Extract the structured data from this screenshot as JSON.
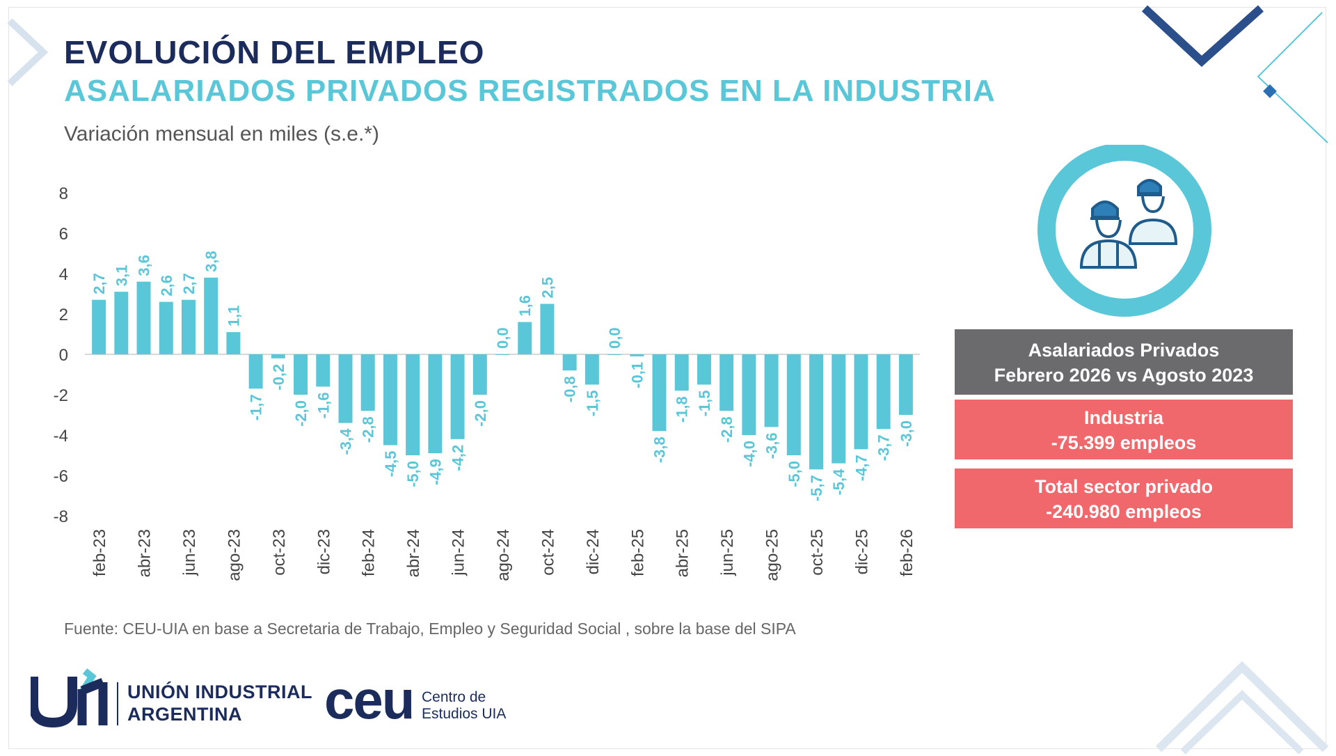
{
  "header": {
    "title": "EVOLUCIÓN DEL EMPLEO",
    "subtitle": "ASALARIADOS PRIVADOS REGISTRADOS EN LA INDUSTRIA",
    "caption": "Variación mensual en miles (s.e.*)"
  },
  "source": "Fuente: CEU-UIA en base a Secretaria de Trabajo, Empleo y Seguridad Social , sobre la base del SIPA",
  "info_panel": {
    "icon": "workers-icon",
    "heading_line1": "Asalariados Privados",
    "heading_line2": "Febrero 2026 vs Agosto 2023",
    "industria_label": "Industria",
    "industria_value": "-75.399 empleos",
    "total_label": "Total sector privado",
    "total_value": "-240.980 empleos"
  },
  "logos": {
    "uia_mark": "U/A",
    "uia_line1": "UNIÓN INDUSTRIAL",
    "uia_line2": "ARGENTINA",
    "ceu_word": "ceu",
    "ceu_line1": "Centro de",
    "ceu_line2": "Estudios UIA"
  },
  "colors": {
    "bar": "#5ac7d8",
    "title": "#1b2c5c",
    "accent_red": "#f0686b",
    "grey_box": "#6b6b6d"
  },
  "chart_data": {
    "type": "bar",
    "title": "",
    "xlabel": "",
    "ylabel": "",
    "ylim": [
      -8,
      8
    ],
    "yticks": [
      8,
      6,
      4,
      2,
      0,
      -2,
      -4,
      -6,
      -8
    ],
    "grid": false,
    "categories": [
      "feb-23",
      "mar-23",
      "abr-23",
      "may-23",
      "jun-23",
      "jul-23",
      "ago-23",
      "sep-23",
      "oct-23",
      "nov-23",
      "dic-23",
      "ene-24",
      "feb-24",
      "mar-24",
      "abr-24",
      "may-24",
      "jun-24",
      "jul-24",
      "ago-24",
      "sep-24",
      "oct-24",
      "nov-24",
      "dic-24",
      "ene-25",
      "feb-25",
      "mar-25",
      "abr-25",
      "may-25",
      "jun-25",
      "jul-25",
      "ago-25",
      "sep-25",
      "oct-25",
      "nov-25",
      "dic-25",
      "ene-26",
      "feb-26"
    ],
    "tick_labels": [
      "feb-23",
      "",
      "abr-23",
      "",
      "jun-23",
      "",
      "ago-23",
      "",
      "oct-23",
      "",
      "dic-23",
      "",
      "feb-24",
      "",
      "abr-24",
      "",
      "jun-24",
      "",
      "ago-24",
      "",
      "oct-24",
      "",
      "dic-24",
      "",
      "feb-25",
      "",
      "abr-25",
      "",
      "jun-25",
      "",
      "ago-25",
      "",
      "oct-25",
      "",
      "dic-25",
      "",
      "feb-26"
    ],
    "values": [
      2.7,
      3.1,
      3.6,
      2.6,
      2.7,
      3.8,
      1.1,
      -1.7,
      -0.2,
      -2.0,
      -1.6,
      -3.4,
      -2.8,
      -4.5,
      -5.0,
      -4.9,
      -4.2,
      -2.0,
      0.0,
      1.6,
      2.5,
      -0.8,
      -1.5,
      0.0,
      -0.1,
      -3.8,
      -1.8,
      -1.5,
      -2.8,
      -4.0,
      -3.6,
      -5.0,
      -5.7,
      -5.4,
      -4.7,
      -3.7,
      -3.0
    ],
    "data_labels": [
      "2,7",
      "3,1",
      "3,6",
      "2,6",
      "2,7",
      "3,8",
      "1,1",
      "-1,7",
      "-0,2",
      "-2,0",
      "-1,6",
      "-3,4",
      "-2,8",
      "-4,5",
      "-5,0",
      "-4,9",
      "-4,2",
      "-2,0",
      "0,0",
      "1,6",
      "2,5",
      "-0,8",
      "-1,5",
      "0,0",
      "-0,1",
      "-3,8",
      "-1,8",
      "-1,5",
      "-2,8",
      "-4,0",
      "-3,6",
      "-5,0",
      "-5,7",
      "-5,4",
      "-4,7",
      "-3,7",
      "-3,0"
    ]
  }
}
